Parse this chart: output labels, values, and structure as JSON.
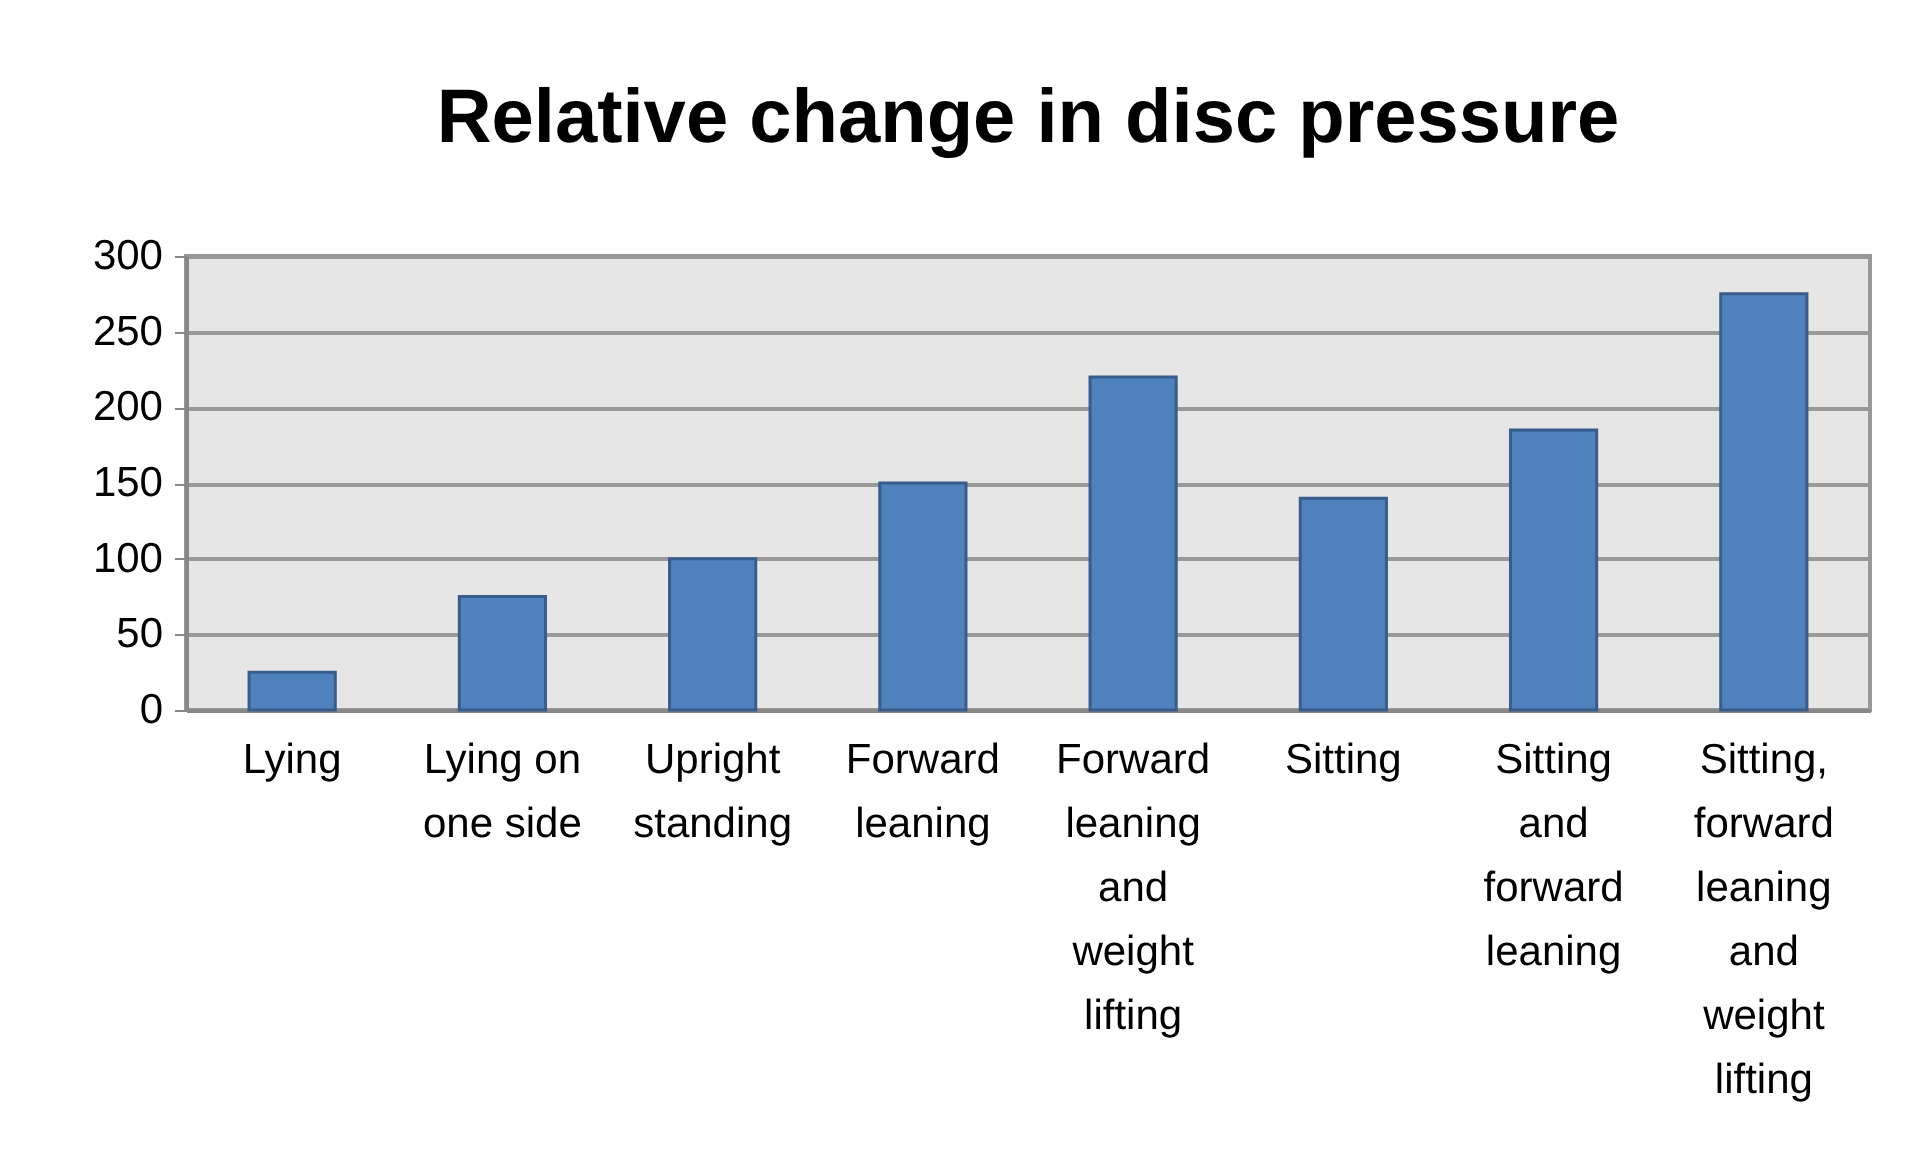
{
  "chart_data": {
    "type": "bar",
    "title": "Relative change in disc pressure",
    "categories": [
      "Lying",
      "Lying on one side",
      "Upright standing",
      "Forward leaning",
      "Forward leaning and weight lifting",
      "Sitting",
      "Sitting and forward leaning",
      "Sitting, forward leaning and weight lifting"
    ],
    "values": [
      25,
      75,
      100,
      150,
      220,
      140,
      185,
      275
    ],
    "color": "#4f81bd",
    "ylim": [
      0,
      300
    ],
    "yticks": [
      0,
      50,
      100,
      150,
      200,
      250,
      300
    ],
    "grid": "y"
  }
}
